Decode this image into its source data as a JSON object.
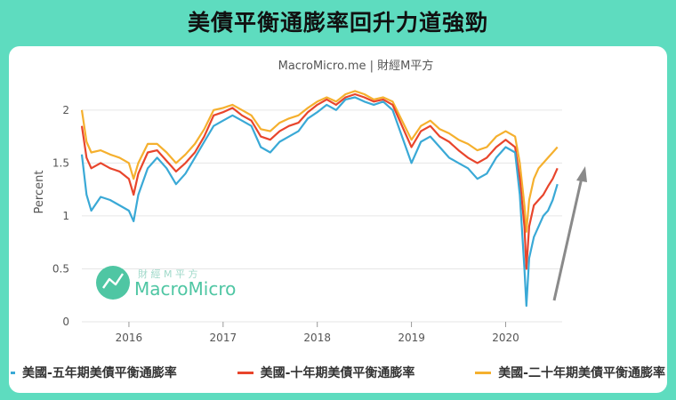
{
  "banner": {
    "title": "美債平衡通膨率回升力道強勁"
  },
  "source": "MacroMicro.me | 財經M平方",
  "watermark": {
    "top_text": "財 經 M 平 方",
    "brand": "MacroMicro"
  },
  "colors": {
    "background": "#5edcbf",
    "five_year": "#3aa9d6",
    "ten_year": "#e8452c",
    "twenty_year": "#f5b02e",
    "arrow": "#8a8a8a",
    "brand": "#4fc6a3"
  },
  "chart_data": {
    "type": "line",
    "title": "",
    "ylabel": "Percent",
    "xlabel": "",
    "xlim": [
      2015.5,
      2020.6
    ],
    "ylim": [
      0,
      2.2
    ],
    "yticks": [
      0,
      0.5,
      1,
      1.5,
      2
    ],
    "xticks": [
      "2016",
      "2017",
      "2018",
      "2019",
      "2020"
    ],
    "grid": "horizontal",
    "legend_position": "bottom",
    "annotations": [
      "upward-arrow"
    ],
    "x": [
      2015.5,
      2015.55,
      2015.6,
      2015.7,
      2015.8,
      2015.9,
      2016.0,
      2016.05,
      2016.1,
      2016.2,
      2016.3,
      2016.4,
      2016.5,
      2016.6,
      2016.7,
      2016.8,
      2016.9,
      2017.0,
      2017.1,
      2017.2,
      2017.3,
      2017.4,
      2017.5,
      2017.6,
      2017.7,
      2017.8,
      2017.9,
      2018.0,
      2018.1,
      2018.2,
      2018.3,
      2018.4,
      2018.5,
      2018.6,
      2018.7,
      2018.8,
      2018.9,
      2019.0,
      2019.1,
      2019.2,
      2019.3,
      2019.4,
      2019.5,
      2019.6,
      2019.7,
      2019.8,
      2019.9,
      2020.0,
      2020.1,
      2020.15,
      2020.2,
      2020.22,
      2020.25,
      2020.3,
      2020.35,
      2020.4,
      2020.45,
      2020.5,
      2020.55
    ],
    "series": [
      {
        "name": "美國-五年期美債平衡通膨率",
        "values": [
          1.58,
          1.2,
          1.05,
          1.18,
          1.15,
          1.1,
          1.05,
          0.95,
          1.2,
          1.45,
          1.55,
          1.45,
          1.3,
          1.4,
          1.55,
          1.7,
          1.85,
          1.9,
          1.95,
          1.9,
          1.85,
          1.65,
          1.6,
          1.7,
          1.75,
          1.8,
          1.92,
          1.98,
          2.05,
          2.0,
          2.1,
          2.12,
          2.08,
          2.05,
          2.08,
          2.0,
          1.75,
          1.5,
          1.7,
          1.75,
          1.65,
          1.55,
          1.5,
          1.45,
          1.35,
          1.4,
          1.55,
          1.65,
          1.6,
          1.2,
          0.5,
          0.15,
          0.6,
          0.8,
          0.9,
          1.0,
          1.05,
          1.15,
          1.3
        ]
      },
      {
        "name": "美國-十年期美債平衡通膨率",
        "values": [
          1.85,
          1.55,
          1.45,
          1.5,
          1.45,
          1.42,
          1.35,
          1.2,
          1.4,
          1.6,
          1.62,
          1.52,
          1.42,
          1.5,
          1.6,
          1.75,
          1.95,
          1.98,
          2.02,
          1.95,
          1.9,
          1.75,
          1.72,
          1.8,
          1.85,
          1.88,
          1.98,
          2.05,
          2.1,
          2.05,
          2.12,
          2.15,
          2.12,
          2.08,
          2.1,
          2.05,
          1.85,
          1.65,
          1.8,
          1.85,
          1.75,
          1.7,
          1.62,
          1.55,
          1.5,
          1.55,
          1.65,
          1.72,
          1.65,
          1.35,
          0.9,
          0.5,
          0.9,
          1.1,
          1.15,
          1.2,
          1.28,
          1.35,
          1.45
        ]
      },
      {
        "name": "美國-二十年期美債平衡通膨率",
        "values": [
          2.0,
          1.7,
          1.6,
          1.62,
          1.58,
          1.55,
          1.5,
          1.35,
          1.5,
          1.68,
          1.68,
          1.6,
          1.5,
          1.58,
          1.68,
          1.82,
          2.0,
          2.02,
          2.05,
          2.0,
          1.95,
          1.82,
          1.8,
          1.88,
          1.92,
          1.95,
          2.02,
          2.08,
          2.12,
          2.08,
          2.15,
          2.18,
          2.15,
          2.1,
          2.12,
          2.08,
          1.9,
          1.72,
          1.85,
          1.9,
          1.82,
          1.78,
          1.72,
          1.68,
          1.62,
          1.65,
          1.75,
          1.8,
          1.75,
          1.5,
          1.1,
          0.85,
          1.15,
          1.35,
          1.45,
          1.5,
          1.55,
          1.6,
          1.65
        ]
      }
    ]
  }
}
